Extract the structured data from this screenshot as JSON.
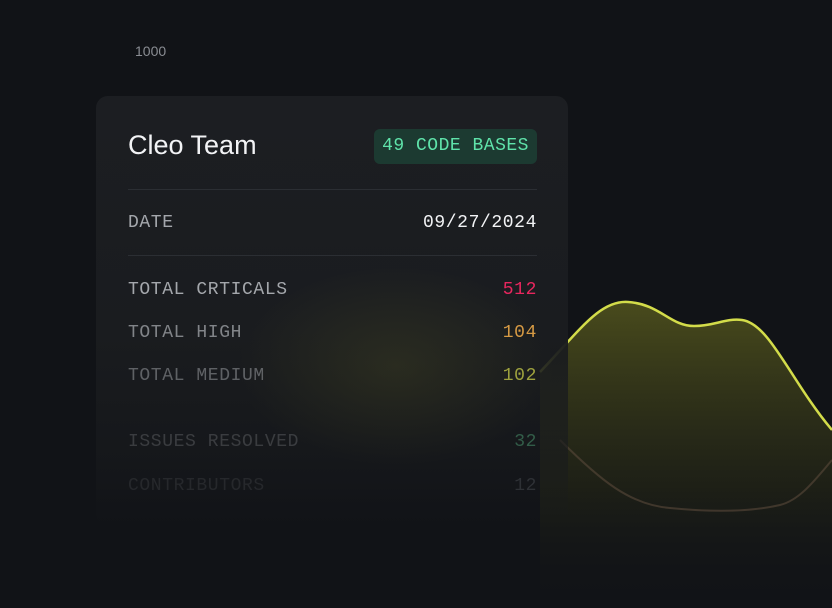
{
  "axis_label": "1000",
  "card": {
    "title": "Cleo Team",
    "badge": "49 CODE BASES",
    "date": {
      "label": "DATE",
      "value": "09/27/2024"
    },
    "rows": [
      {
        "label": "TOTAL CRTICALS",
        "value": 512
      },
      {
        "label": "TOTAL HIGH",
        "value": 104
      },
      {
        "label": "TOTAL MEDIUM",
        "value": 102
      },
      {
        "label": "ISSUES RESOLVED",
        "value": 32
      },
      {
        "label": "CONTRIBUTORS",
        "value": 12
      }
    ]
  }
}
